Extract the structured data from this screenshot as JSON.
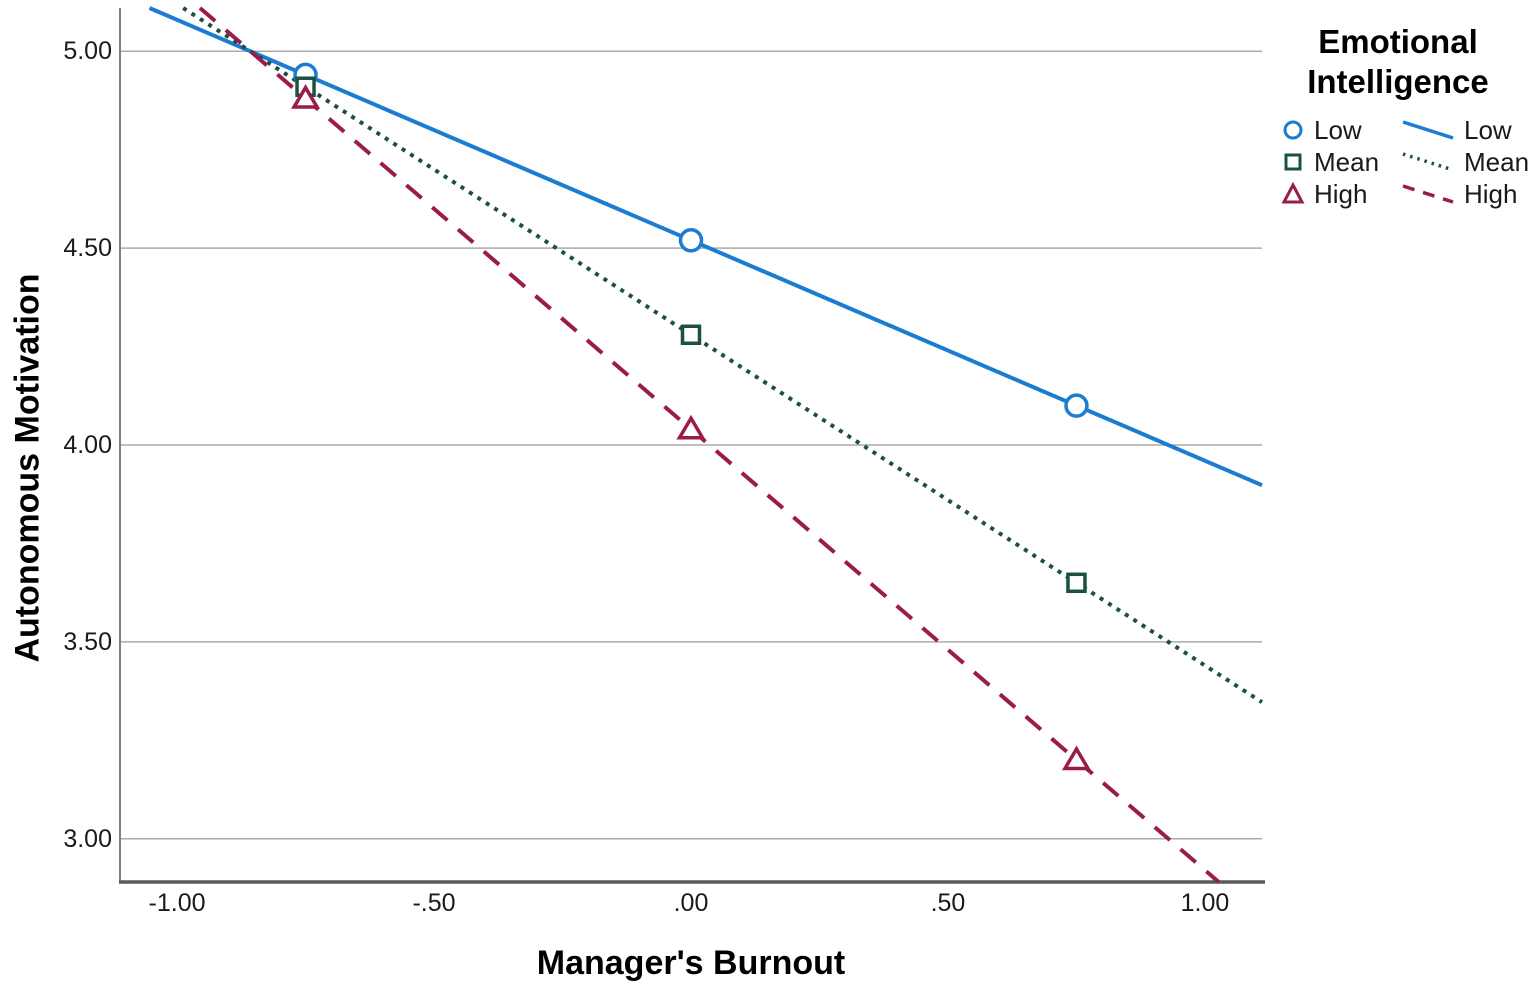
{
  "chart_data": {
    "type": "line",
    "title": "",
    "xlabel": "Manager's Burnout",
    "ylabel": "Autonomous Motivation",
    "xlim": [
      -1.111,
      1.111
    ],
    "ylim": [
      2.89,
      5.11
    ],
    "grid": "horizontal gridlines only",
    "x_ticks": [
      {
        "label": "-1.00",
        "value": -1.0
      },
      {
        "label": "-.50",
        "value": -0.5
      },
      {
        "label": ".00",
        "value": 0.0
      },
      {
        "label": ".50",
        "value": 0.5
      },
      {
        "label": "1.00",
        "value": 1.0
      }
    ],
    "y_ticks": [
      {
        "label": "3.00",
        "value": 3.0
      },
      {
        "label": "3.50",
        "value": 3.5
      },
      {
        "label": "4.00",
        "value": 4.0
      },
      {
        "label": "4.50",
        "value": 4.5
      },
      {
        "label": "5.00",
        "value": 5.0
      }
    ],
    "legend": {
      "title": "Emotional Intelligence",
      "position": "top-right",
      "marker_column": [
        "Low",
        "Mean",
        "High"
      ],
      "line_column": [
        "Low",
        "Mean",
        "High"
      ]
    },
    "series": [
      {
        "name": "Low",
        "marker": "circle",
        "line_style": "solid",
        "color": "#1b7cd1",
        "x": [
          -0.75,
          0.0,
          0.75
        ],
        "y": [
          4.94,
          4.52,
          4.1
        ],
        "trend": {
          "slope": -0.56,
          "intercept": 4.52
        }
      },
      {
        "name": "Mean",
        "marker": "square",
        "line_style": "dotted",
        "color": "#1c5045",
        "x": [
          -0.75,
          0.0,
          0.75
        ],
        "y": [
          4.91,
          4.28,
          3.65
        ],
        "trend": {
          "slope": -0.84,
          "intercept": 4.28
        }
      },
      {
        "name": "High",
        "marker": "triangle",
        "line_style": "dashed",
        "color": "#9a1c47",
        "x": [
          -0.75,
          0.0,
          0.75
        ],
        "y": [
          4.88,
          4.04,
          3.2
        ],
        "trend": {
          "slope": -1.12,
          "intercept": 4.04
        }
      }
    ],
    "colors": {
      "gridline": "#ababab",
      "y_axis_line": "#808080",
      "x_axis_line": "#5a5a5a",
      "text": "#1a1a1a"
    }
  }
}
